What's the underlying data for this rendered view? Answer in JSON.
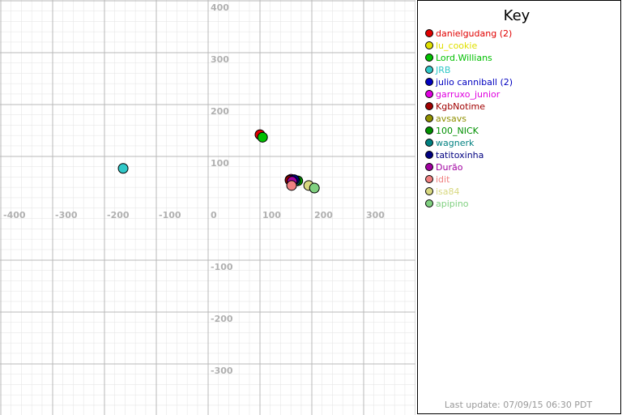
{
  "chart_data": {
    "type": "scatter",
    "title": "Key",
    "footer": "Last update: 07/09/15 06:30 PDT",
    "xlim": [
      -400,
      400
    ],
    "ylim": [
      -400,
      400
    ],
    "xticks": [
      -400,
      -300,
      -200,
      -100,
      0,
      100,
      200,
      300,
      400
    ],
    "yticks": [
      -400,
      -300,
      -200,
      -100,
      100,
      200,
      300,
      400
    ],
    "grid": true,
    "series": [
      {
        "name": "danielgudang (2)",
        "color": "#e00000",
        "x": [
          100
        ],
        "values": [
          142
        ]
      },
      {
        "name": "lu_cookie",
        "color": "#e0e000",
        "x": [
          158
        ],
        "values": [
          55
        ]
      },
      {
        "name": "Lord.Willians",
        "color": "#00c000",
        "x": [
          105
        ],
        "values": [
          137
        ]
      },
      {
        "name": "JRB",
        "color": "#30c8c8",
        "x": [
          -164
        ],
        "values": [
          77
        ]
      },
      {
        "name": "julio canniball (2)",
        "color": "#0000c0",
        "x": [
          163
        ],
        "values": [
          53
        ]
      },
      {
        "name": "garruxo_junior",
        "color": "#e000e0",
        "x": [
          160
        ],
        "values": [
          56
        ]
      },
      {
        "name": "KgbNotime",
        "color": "#a00000",
        "x": [
          158
        ],
        "values": [
          54
        ]
      },
      {
        "name": "avsavs",
        "color": "#909000",
        "x": [
          166
        ],
        "values": [
          55
        ]
      },
      {
        "name": "100_NICK",
        "color": "#009000",
        "x": [
          173
        ],
        "values": [
          53
        ]
      },
      {
        "name": "wagnerk",
        "color": "#008080",
        "x": [
          168
        ],
        "values": [
          53
        ]
      },
      {
        "name": "tatitoxinha",
        "color": "#000080",
        "x": [
          166
        ],
        "values": [
          55
        ]
      },
      {
        "name": "Durão",
        "color": "#a000a0",
        "x": [
          162
        ],
        "values": [
          52
        ]
      },
      {
        "name": "idit",
        "color": "#f08080",
        "x": [
          161
        ],
        "values": [
          44
        ]
      },
      {
        "name": "isa84",
        "color": "#d8d880",
        "x": [
          194
        ],
        "values": [
          44
        ]
      },
      {
        "name": "apipino",
        "color": "#80d080",
        "x": [
          205
        ],
        "values": [
          39
        ]
      }
    ]
  }
}
